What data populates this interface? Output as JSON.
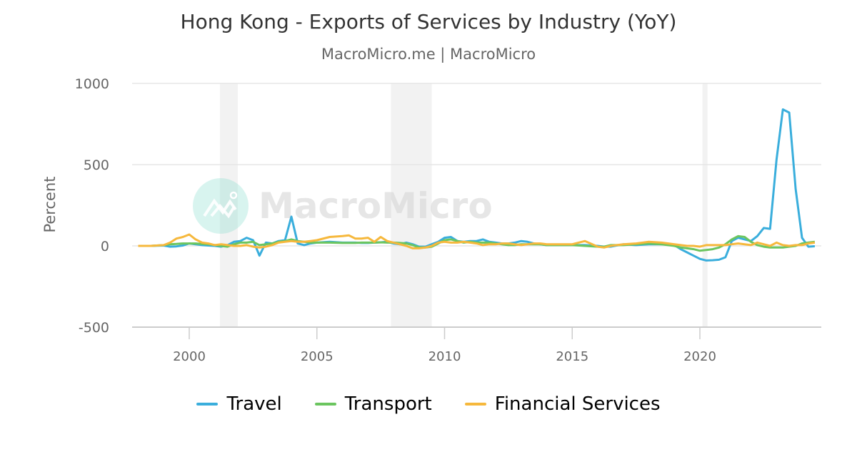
{
  "header": {
    "title": "Hong Kong - Exports of Services by Industry (YoY)",
    "subtitle": "MacroMicro.me | MacroMicro"
  },
  "watermark": {
    "text": "MacroMicro",
    "icon": "macromicro-logo-icon"
  },
  "colors": {
    "travel": "#3AAEDC",
    "transport": "#6BC55F",
    "financial": "#F6B83C",
    "grid": "#E6E6E6",
    "band": "#F2F2F2",
    "axis_text": "#666666"
  },
  "legend": [
    {
      "label": "Travel",
      "color": "#3AAEDC"
    },
    {
      "label": "Transport",
      "color": "#6BC55F"
    },
    {
      "label": "Financial Services",
      "color": "#F6B83C"
    }
  ],
  "chart_data": {
    "type": "line",
    "title": "Hong Kong - Exports of Services by Industry (YoY)",
    "subtitle": "MacroMicro.me | MacroMicro",
    "xlabel": "",
    "ylabel": "Percent",
    "ylim": [
      -500,
      1000
    ],
    "yticks": [
      1000,
      500,
      0,
      -500
    ],
    "xticks": [
      "2000",
      "2005",
      "2010",
      "2015",
      "2020"
    ],
    "xlim": [
      1997.6,
      2024.8
    ],
    "grid": true,
    "legend_position": "bottom",
    "shaded_bands": [
      [
        2001.2,
        2001.9
      ],
      [
        2007.9,
        2009.5
      ],
      [
        2020.1,
        2020.3
      ]
    ],
    "x": [
      1998.0,
      1998.5,
      1999.0,
      1999.25,
      1999.5,
      1999.75,
      2000.0,
      2000.25,
      2000.5,
      2000.75,
      2001.0,
      2001.25,
      2001.5,
      2001.75,
      2002.0,
      2002.25,
      2002.5,
      2002.75,
      2003.0,
      2003.25,
      2003.5,
      2003.75,
      2004.0,
      2004.25,
      2004.5,
      2004.75,
      2005.0,
      2005.5,
      2006.0,
      2006.25,
      2006.5,
      2006.75,
      2007.0,
      2007.25,
      2007.5,
      2007.75,
      2008.0,
      2008.25,
      2008.5,
      2008.75,
      2009.0,
      2009.25,
      2009.5,
      2009.75,
      2010.0,
      2010.25,
      2010.5,
      2010.75,
      2011.0,
      2011.25,
      2011.5,
      2011.75,
      2012.0,
      2012.25,
      2012.5,
      2012.75,
      2013.0,
      2013.25,
      2013.5,
      2013.75,
      2014.0,
      2014.5,
      2015.0,
      2015.5,
      2016.0,
      2016.25,
      2016.5,
      2017.0,
      2017.5,
      2018.0,
      2018.5,
      2019.0,
      2019.25,
      2019.5,
      2019.75,
      2020.0,
      2020.25,
      2020.5,
      2020.75,
      2021.0,
      2021.25,
      2021.5,
      2021.75,
      2022.0,
      2022.25,
      2022.5,
      2022.75,
      2023.0,
      2023.25,
      2023.5,
      2023.75,
      2024.0,
      2024.25,
      2024.5
    ],
    "series": [
      {
        "name": "Travel",
        "values": [
          0,
          0,
          2,
          -5,
          -3,
          2,
          15,
          10,
          5,
          2,
          0,
          -5,
          5,
          25,
          30,
          50,
          35,
          -60,
          20,
          15,
          30,
          35,
          180,
          15,
          5,
          15,
          20,
          25,
          20,
          20,
          20,
          18,
          18,
          20,
          22,
          25,
          15,
          10,
          20,
          10,
          -5,
          -5,
          10,
          25,
          50,
          55,
          30,
          25,
          30,
          30,
          40,
          25,
          20,
          15,
          15,
          20,
          30,
          25,
          15,
          10,
          5,
          5,
          5,
          5,
          0,
          -5,
          -5,
          10,
          5,
          10,
          10,
          5,
          -20,
          -40,
          -60,
          -80,
          -90,
          -88,
          -85,
          -70,
          30,
          50,
          40,
          30,
          60,
          110,
          105,
          530,
          840,
          820,
          350,
          50,
          -5,
          -2
        ]
      },
      {
        "name": "Transport",
        "values": [
          0,
          0,
          5,
          10,
          12,
          15,
          15,
          15,
          12,
          10,
          5,
          0,
          -5,
          10,
          20,
          20,
          25,
          5,
          10,
          15,
          25,
          30,
          40,
          30,
          25,
          20,
          20,
          20,
          18,
          18,
          18,
          20,
          20,
          20,
          22,
          20,
          20,
          18,
          15,
          5,
          -10,
          -10,
          -5,
          15,
          35,
          40,
          30,
          20,
          25,
          20,
          20,
          20,
          15,
          10,
          5,
          5,
          10,
          10,
          10,
          10,
          5,
          5,
          5,
          0,
          -5,
          -5,
          5,
          5,
          10,
          15,
          10,
          0,
          -10,
          -15,
          -20,
          -30,
          -25,
          -20,
          -10,
          10,
          40,
          60,
          55,
          25,
          5,
          -5,
          -10,
          -10,
          -10,
          -5,
          0,
          15,
          20,
          25
        ]
      },
      {
        "name": "Financial Services",
        "values": [
          0,
          0,
          5,
          20,
          45,
          55,
          70,
          40,
          20,
          15,
          5,
          10,
          5,
          0,
          0,
          5,
          -5,
          -10,
          -5,
          5,
          20,
          25,
          30,
          25,
          25,
          30,
          35,
          55,
          60,
          65,
          45,
          45,
          50,
          25,
          55,
          30,
          20,
          10,
          0,
          -15,
          -15,
          -10,
          0,
          20,
          25,
          20,
          20,
          25,
          20,
          15,
          5,
          10,
          10,
          15,
          15,
          10,
          5,
          10,
          15,
          15,
          10,
          10,
          10,
          30,
          -5,
          -10,
          0,
          10,
          15,
          25,
          20,
          10,
          5,
          0,
          0,
          -5,
          5,
          5,
          5,
          5,
          10,
          15,
          10,
          5,
          20,
          10,
          0,
          20,
          5,
          0,
          5,
          5,
          15,
          20
        ]
      }
    ]
  }
}
